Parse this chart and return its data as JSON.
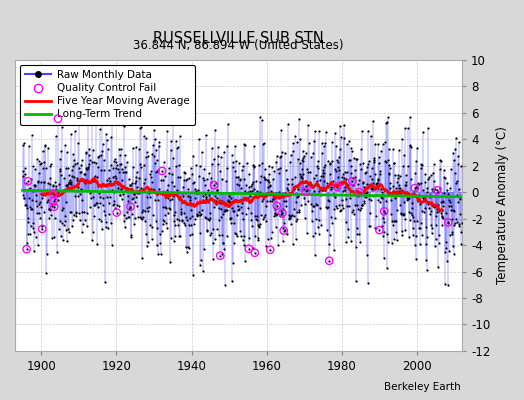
{
  "title": "RUSSELLVILLE SUB STN",
  "subtitle": "36.844 N, 86.894 W (United States)",
  "ylabel": "Temperature Anomaly (°C)",
  "credit": "Berkeley Earth",
  "ylim": [
    -12,
    10
  ],
  "yticks": [
    -12,
    -10,
    -8,
    -6,
    -4,
    -2,
    0,
    2,
    4,
    6,
    8,
    10
  ],
  "xlim": [
    1893,
    2012
  ],
  "xticks": [
    1900,
    1920,
    1940,
    1960,
    1980,
    2000
  ],
  "figure_bg_color": "#d8d8d8",
  "plot_bg_color": "#ffffff",
  "raw_line_color": "#4444ff",
  "raw_marker_color": "#000000",
  "qc_fail_color": "#ff00ff",
  "moving_avg_color": "#ff0000",
  "trend_color": "#00bb00",
  "seed": 42,
  "n_months": 1400,
  "start_year": 1895.0,
  "end_year": 2011.9
}
